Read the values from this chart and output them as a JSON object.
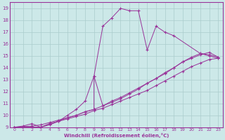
{
  "xlabel": "Windchill (Refroidissement éolien,°C)",
  "bg_color": "#cce8e8",
  "line_color": "#993399",
  "grid_color": "#aacccc",
  "xlim": [
    -0.5,
    23.5
  ],
  "ylim": [
    9,
    19.5
  ],
  "xticks": [
    0,
    1,
    2,
    3,
    4,
    5,
    6,
    7,
    8,
    9,
    10,
    11,
    12,
    13,
    14,
    15,
    16,
    17,
    18,
    19,
    20,
    21,
    22,
    23
  ],
  "yticks": [
    9,
    10,
    11,
    12,
    13,
    14,
    15,
    16,
    17,
    18,
    19
  ],
  "line1_x": [
    0,
    1,
    3,
    4,
    5,
    6,
    7,
    8,
    9,
    10,
    11,
    12,
    13,
    14,
    15,
    16,
    17,
    18,
    21,
    22,
    23
  ],
  "line1_y": [
    9,
    9,
    9,
    9.2,
    9.5,
    10.0,
    10.5,
    11.2,
    13.3,
    17.5,
    18.2,
    19.0,
    18.8,
    18.8,
    15.5,
    17.5,
    17.0,
    16.7,
    15.2,
    15.0,
    14.8
  ],
  "line2_x": [
    0,
    3,
    4,
    5,
    6,
    7,
    8,
    9,
    10,
    11,
    12,
    13,
    14,
    15,
    16,
    17,
    18,
    19,
    20,
    21,
    22,
    23
  ],
  "line2_y": [
    9,
    9.0,
    9.3,
    9.5,
    9.7,
    9.9,
    10.1,
    10.4,
    10.6,
    10.9,
    11.2,
    11.5,
    11.8,
    12.1,
    12.5,
    12.9,
    13.3,
    13.7,
    14.1,
    14.4,
    14.7,
    14.8
  ],
  "line3_x": [
    0,
    2,
    3,
    4,
    5,
    6,
    7,
    8,
    9,
    10,
    11,
    12,
    13,
    14,
    15,
    16,
    17,
    18,
    19,
    20,
    21,
    22,
    23
  ],
  "line3_y": [
    9,
    9.1,
    9.2,
    9.4,
    9.6,
    9.8,
    10.0,
    10.3,
    10.5,
    10.8,
    11.1,
    11.4,
    11.8,
    12.2,
    12.7,
    13.1,
    13.5,
    14.0,
    14.5,
    14.8,
    15.1,
    15.3,
    14.9
  ],
  "line4_x": [
    0,
    1,
    2,
    3,
    4,
    5,
    6,
    7,
    8,
    9,
    9,
    10,
    11,
    12,
    13,
    14,
    15,
    16,
    17,
    18,
    19,
    20,
    21,
    22,
    23
  ],
  "line4_y": [
    9,
    9.1,
    9.3,
    9.0,
    9.3,
    9.5,
    9.8,
    10.0,
    10.3,
    10.5,
    13.3,
    10.8,
    11.2,
    11.5,
    11.9,
    12.3,
    12.7,
    13.1,
    13.6,
    14.0,
    14.5,
    14.9,
    15.2,
    15.1,
    14.9
  ]
}
